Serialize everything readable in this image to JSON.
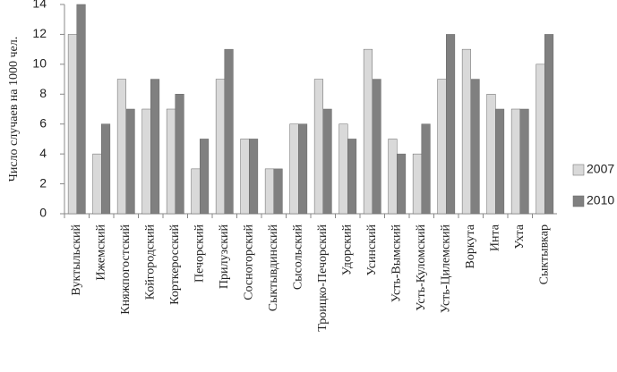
{
  "chart_data": {
    "type": "bar",
    "y_label": "Число случаев на 1000 чел.",
    "categories": [
      "Вуктыльский",
      "Ижемский",
      "Княжпогостский",
      "Койгородский",
      "Корткеросский",
      "Печорский",
      "Прилузский",
      "Сосногорский",
      "Сыктывдинский",
      "Сысольский",
      "Троицко-Печорский",
      "Удорский",
      "Усинский",
      "Усть-Вымский",
      "Усть-Куломский",
      "Усть-Цилемский",
      "Воркута",
      "Инта",
      "Ухта",
      "Сыктывкар"
    ],
    "series": [
      {
        "name": "2007",
        "color": "#d9d9d9",
        "values": [
          12,
          4,
          9,
          7,
          7,
          3,
          9,
          5,
          3,
          6,
          9,
          6,
          11,
          5,
          4,
          9,
          11,
          8,
          7,
          10
        ]
      },
      {
        "name": "2010",
        "color": "#808080",
        "values": [
          14,
          6,
          7,
          9,
          8,
          5,
          11,
          5,
          3,
          6,
          7,
          5,
          9,
          4,
          6,
          12,
          9,
          7,
          7,
          12
        ]
      }
    ],
    "ylim": [
      0,
      14
    ],
    "yticks": [
      0,
      2,
      4,
      6,
      8,
      10,
      12,
      14
    ],
    "grid": false,
    "legend": "right"
  }
}
